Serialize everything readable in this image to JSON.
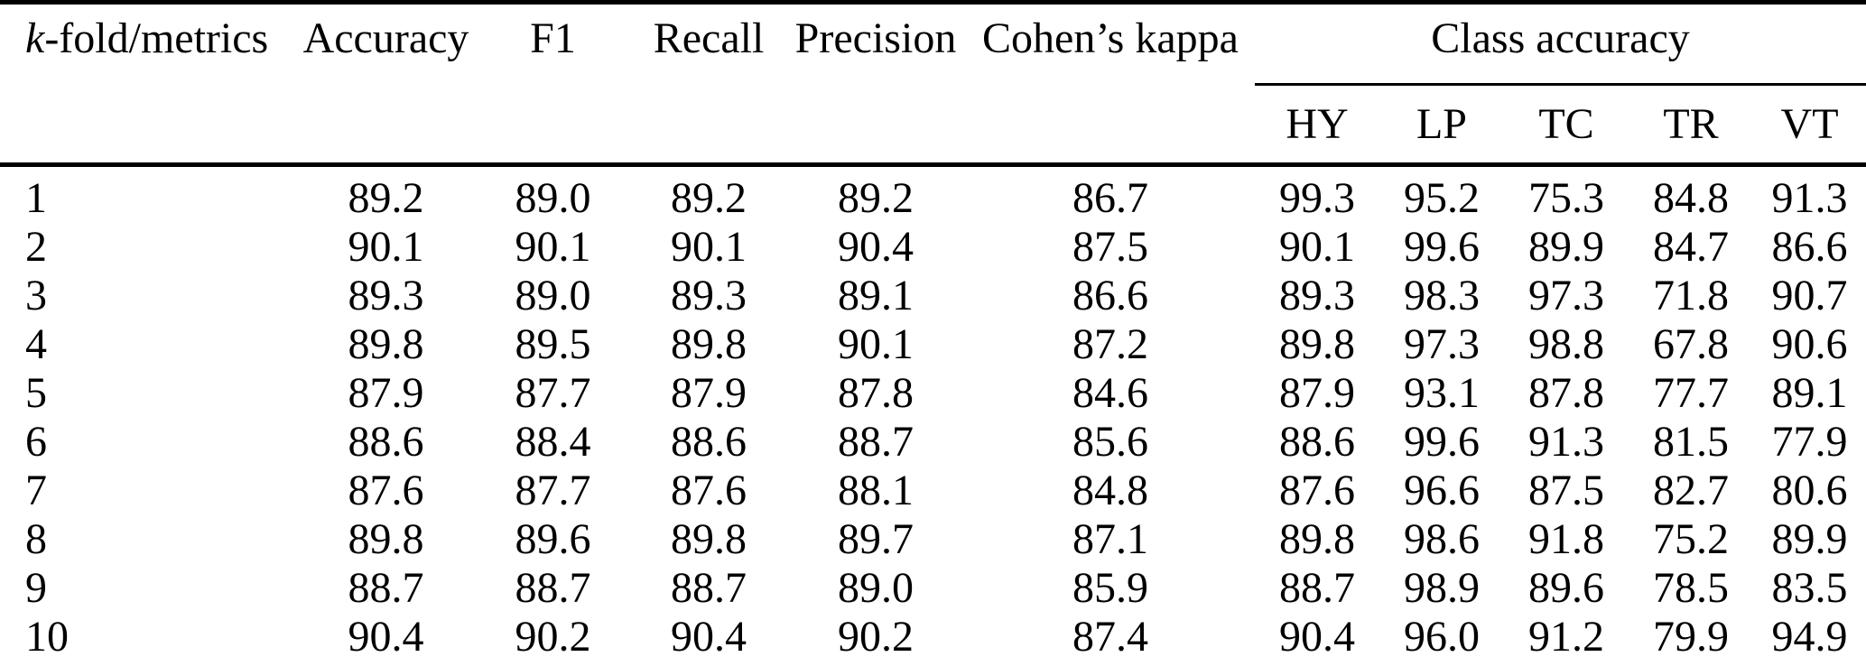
{
  "table": {
    "header": {
      "kfold_italic": "k",
      "kfold_rest": "-fold/metrics",
      "accuracy": "Accuracy",
      "f1": "F1",
      "recall": "Recall",
      "precision": "Precision",
      "kappa": "Cohen’s kappa",
      "class_accuracy_group": "Class accuracy",
      "class_labels": [
        "HY",
        "LP",
        "TC",
        "TR",
        "VT"
      ]
    },
    "rows": [
      {
        "fold": "1",
        "accuracy": "89.2",
        "f1": "89.0",
        "recall": "89.2",
        "precision": "89.2",
        "kappa": "86.7",
        "class_accuracy": [
          "99.3",
          "95.2",
          "75.3",
          "84.8",
          "91.3"
        ]
      },
      {
        "fold": "2",
        "accuracy": "90.1",
        "f1": "90.1",
        "recall": "90.1",
        "precision": "90.4",
        "kappa": "87.5",
        "class_accuracy": [
          "90.1",
          "99.6",
          "89.9",
          "84.7",
          "86.6"
        ]
      },
      {
        "fold": "3",
        "accuracy": "89.3",
        "f1": "89.0",
        "recall": "89.3",
        "precision": "89.1",
        "kappa": "86.6",
        "class_accuracy": [
          "89.3",
          "98.3",
          "97.3",
          "71.8",
          "90.7"
        ]
      },
      {
        "fold": "4",
        "accuracy": "89.8",
        "f1": "89.5",
        "recall": "89.8",
        "precision": "90.1",
        "kappa": "87.2",
        "class_accuracy": [
          "89.8",
          "97.3",
          "98.8",
          "67.8",
          "90.6"
        ]
      },
      {
        "fold": "5",
        "accuracy": "87.9",
        "f1": "87.7",
        "recall": "87.9",
        "precision": "87.8",
        "kappa": "84.6",
        "class_accuracy": [
          "87.9",
          "93.1",
          "87.8",
          "77.7",
          "89.1"
        ]
      },
      {
        "fold": "6",
        "accuracy": "88.6",
        "f1": "88.4",
        "recall": "88.6",
        "precision": "88.7",
        "kappa": "85.6",
        "class_accuracy": [
          "88.6",
          "99.6",
          "91.3",
          "81.5",
          "77.9"
        ]
      },
      {
        "fold": "7",
        "accuracy": "87.6",
        "f1": "87.7",
        "recall": "87.6",
        "precision": "88.1",
        "kappa": "84.8",
        "class_accuracy": [
          "87.6",
          "96.6",
          "87.5",
          "82.7",
          "80.6"
        ]
      },
      {
        "fold": "8",
        "accuracy": "89.8",
        "f1": "89.6",
        "recall": "89.8",
        "precision": "89.7",
        "kappa": "87.1",
        "class_accuracy": [
          "89.8",
          "98.6",
          "91.8",
          "75.2",
          "89.9"
        ]
      },
      {
        "fold": "9",
        "accuracy": "88.7",
        "f1": "88.7",
        "recall": "88.7",
        "precision": "89.0",
        "kappa": "85.9",
        "class_accuracy": [
          "88.7",
          "98.9",
          "89.6",
          "78.5",
          "83.5"
        ]
      },
      {
        "fold": "10",
        "accuracy": "90.4",
        "f1": "90.2",
        "recall": "90.4",
        "precision": "90.2",
        "kappa": "87.4",
        "class_accuracy": [
          "90.4",
          "96.0",
          "91.2",
          "79.9",
          "94.9"
        ]
      }
    ]
  },
  "colors": {
    "text": "#000000",
    "background": "#ffffff",
    "rule": "#000000"
  }
}
